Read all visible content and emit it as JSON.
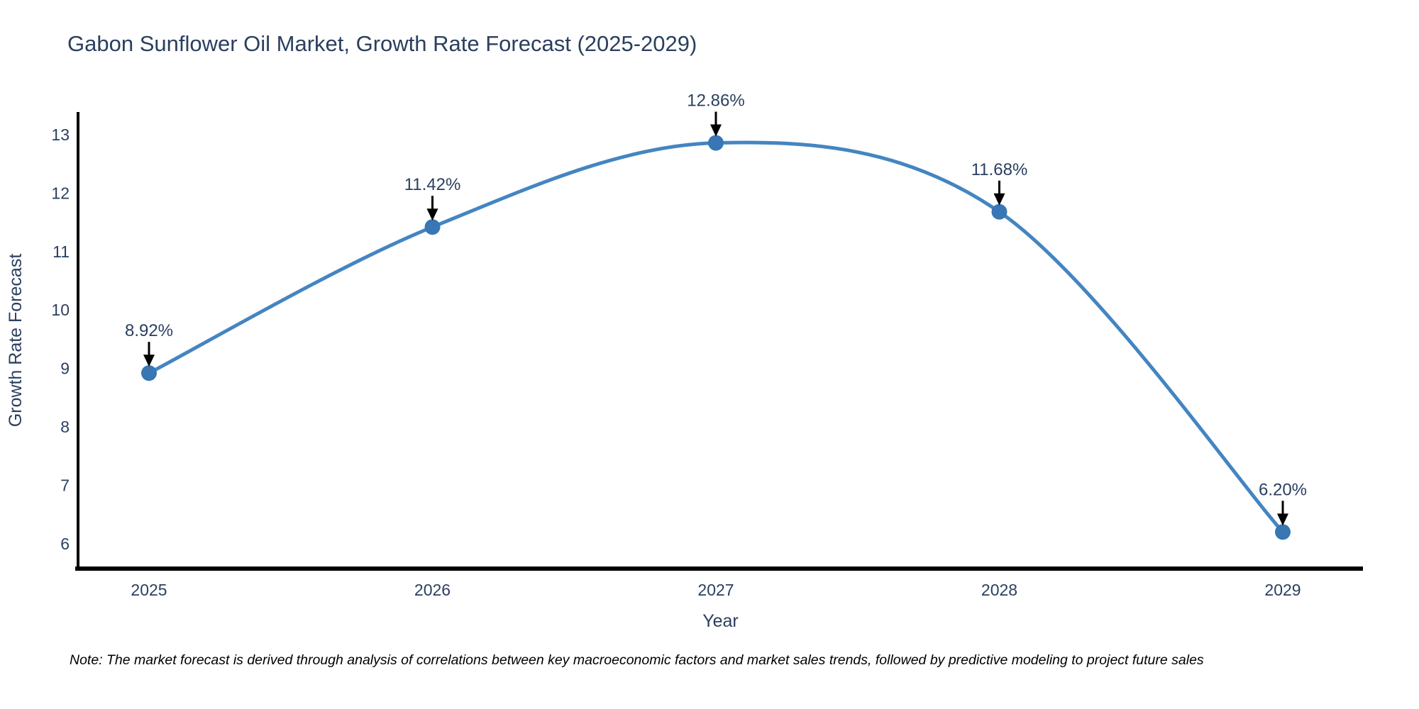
{
  "chart_data": {
    "type": "line",
    "title": "Gabon Sunflower Oil Market, Growth Rate Forecast (2025-2029)",
    "xlabel": "Year",
    "ylabel": "Growth Rate Forecast",
    "x": [
      2025,
      2026,
      2027,
      2028,
      2029
    ],
    "series": [
      {
        "name": "Growth Rate Forecast",
        "values": [
          8.92,
          11.42,
          12.86,
          11.68,
          6.2
        ],
        "point_labels": [
          "8.92%",
          "11.42%",
          "12.86%",
          "11.68%",
          "6.20%"
        ]
      }
    ],
    "yticks": [
      6,
      7,
      8,
      9,
      10,
      11,
      12,
      13
    ],
    "ylim": [
      5.6,
      13.36
    ],
    "xlim": [
      2024.75,
      2029.28
    ],
    "line_shape": "spline",
    "grid": false,
    "legend_position": "none",
    "markers": true,
    "annotations_have_arrows": true,
    "colors": {
      "line": "#4485c1",
      "marker": "#3876b4",
      "axis": "#000000",
      "text": "#2a3f5f",
      "annotation_text": "#2a3f5f",
      "annotation_arrow": "#000000",
      "background": "#ffffff"
    }
  },
  "note": {
    "text": "Note: The market forecast is derived through analysis of correlations between key macroeconomic factors and market sales trends, followed by predictive modeling to project future sales"
  }
}
